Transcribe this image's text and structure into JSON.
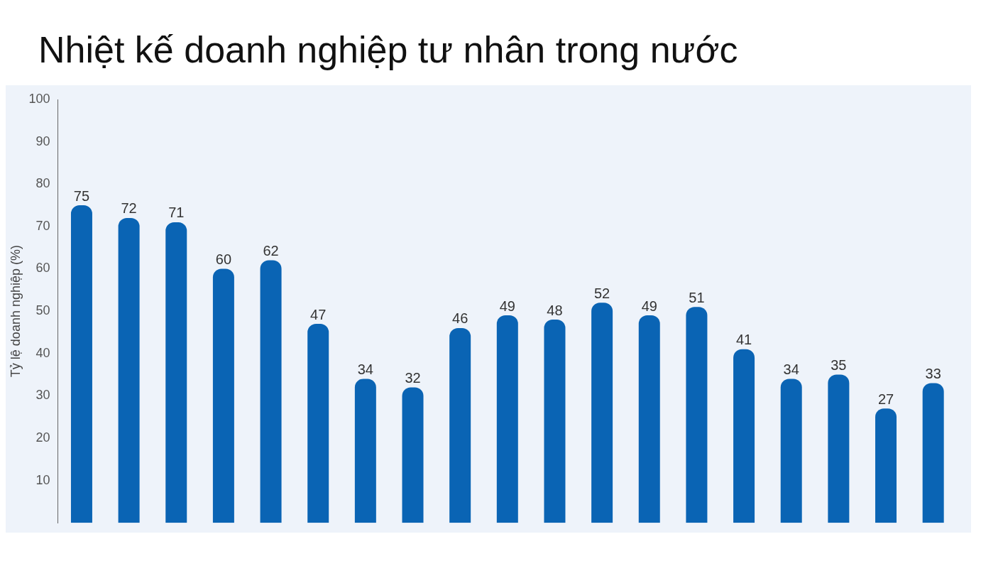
{
  "chart_data": {
    "type": "bar",
    "title": "Nhiệt kế doanh nghiệp tư nhân trong nước",
    "ylabel": "Tỷ lệ doanh nghiệp (%)",
    "categories": [
      null,
      null,
      null,
      null,
      null,
      null,
      null,
      null,
      null,
      null,
      null,
      null,
      null,
      null,
      null,
      null,
      null,
      null,
      null
    ],
    "values": [
      75,
      72,
      71,
      60,
      62,
      47,
      34,
      32,
      46,
      49,
      48,
      52,
      49,
      51,
      41,
      34,
      35,
      27,
      33
    ],
    "color": "#0a64b4",
    "ylim": [
      0,
      100
    ],
    "yticks": [
      10,
      20,
      30,
      40,
      50,
      60,
      70,
      80,
      90,
      100
    ],
    "grid": false,
    "data_labels": true
  }
}
